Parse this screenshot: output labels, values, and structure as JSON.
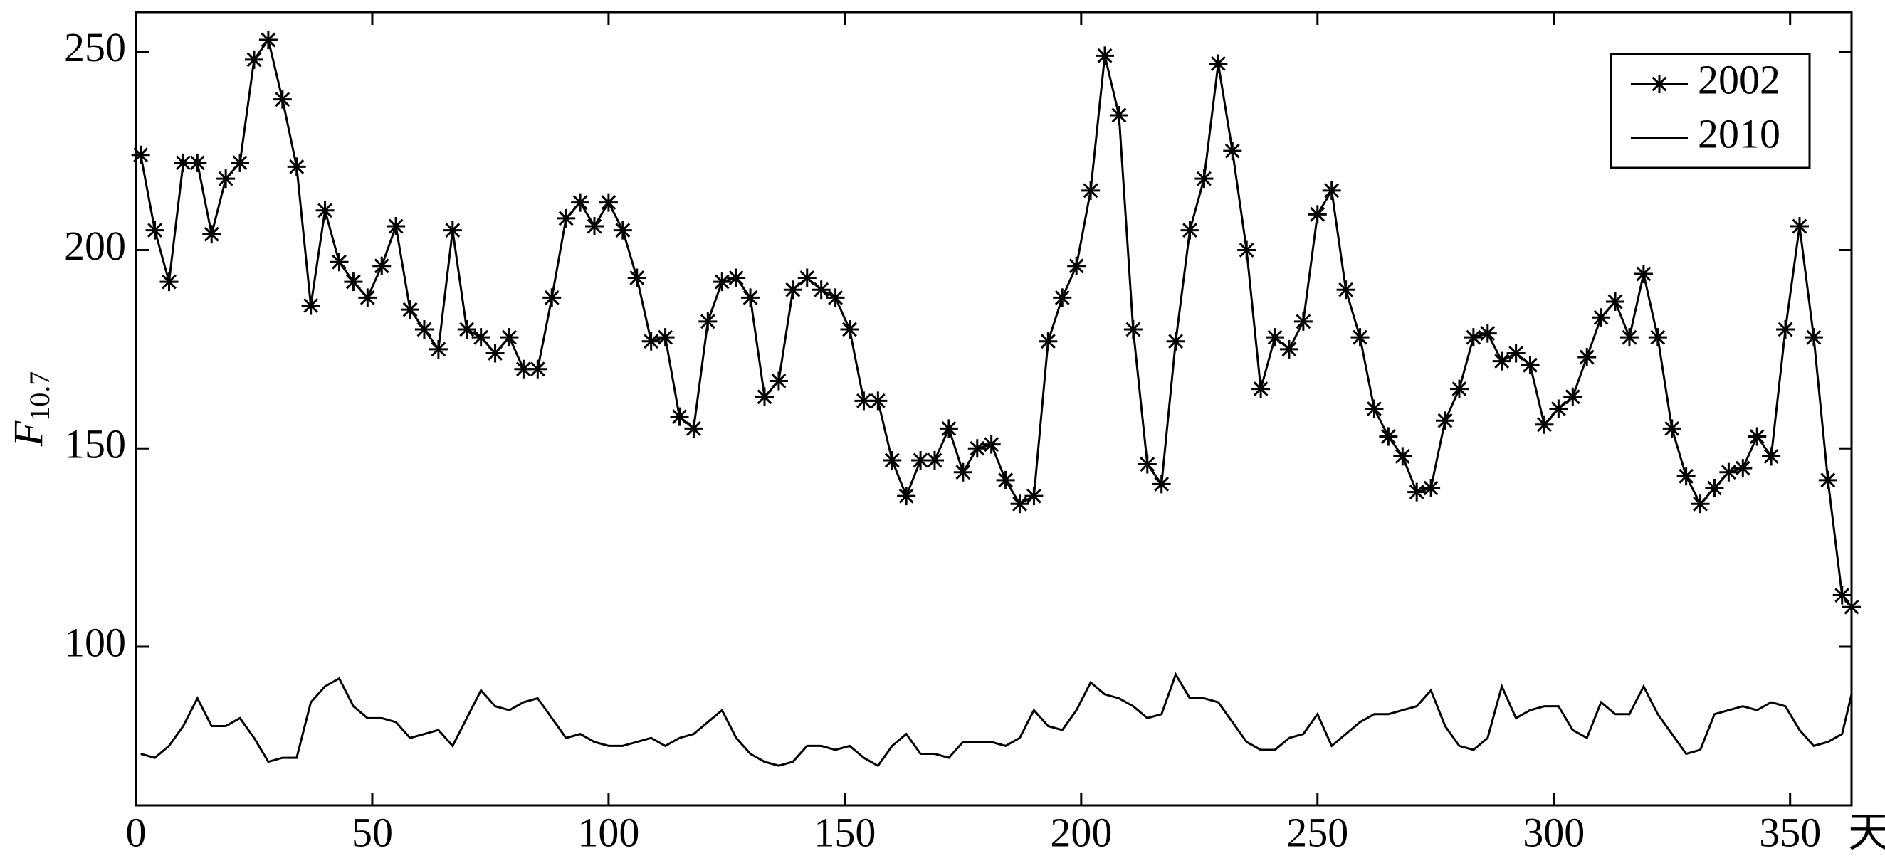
{
  "chart_data": {
    "type": "line",
    "ylabel": "F",
    "ylabel_subscript": "10.7",
    "xlabel": "天",
    "xlim": [
      0,
      363
    ],
    "ylim": [
      60,
      260
    ],
    "xticks": [
      0,
      50,
      100,
      150,
      200,
      250,
      300,
      350
    ],
    "yticks": [
      100,
      150,
      200,
      250
    ],
    "grid": false,
    "legend": "upper right",
    "x": [
      1,
      4,
      7,
      10,
      13,
      16,
      19,
      22,
      25,
      28,
      31,
      34,
      37,
      40,
      43,
      46,
      49,
      52,
      55,
      58,
      61,
      64,
      67,
      70,
      73,
      76,
      79,
      82,
      85,
      88,
      91,
      94,
      97,
      100,
      103,
      106,
      109,
      112,
      115,
      118,
      121,
      124,
      127,
      130,
      133,
      136,
      139,
      142,
      145,
      148,
      151,
      154,
      157,
      160,
      163,
      166,
      169,
      172,
      175,
      178,
      181,
      184,
      187,
      190,
      193,
      196,
      199,
      202,
      205,
      208,
      211,
      214,
      217,
      220,
      223,
      226,
      229,
      232,
      235,
      238,
      241,
      244,
      247,
      250,
      253,
      256,
      259,
      262,
      265,
      268,
      271,
      274,
      277,
      280,
      283,
      286,
      289,
      292,
      295,
      298,
      301,
      304,
      307,
      310,
      313,
      316,
      319,
      322,
      325,
      328,
      331,
      334,
      337,
      340,
      343,
      346,
      349,
      352,
      355,
      358,
      361,
      363
    ],
    "series": [
      {
        "name": "2002",
        "color": "#000000",
        "marker": "asterisk",
        "values": [
          224,
          205,
          192,
          222,
          222,
          204,
          218,
          222,
          248,
          253,
          238,
          221,
          186,
          210,
          197,
          192,
          188,
          196,
          206,
          185,
          180,
          175,
          205,
          180,
          178,
          174,
          178,
          170,
          170,
          188,
          208,
          212,
          206,
          212,
          205,
          193,
          177,
          178,
          158,
          155,
          182,
          192,
          193,
          188,
          163,
          167,
          190,
          193,
          190,
          188,
          180,
          162,
          162,
          147,
          138,
          147,
          147,
          155,
          144,
          150,
          151,
          142,
          136,
          138,
          177,
          188,
          196,
          215,
          249,
          234,
          180,
          146,
          141,
          177,
          205,
          218,
          247,
          225,
          200,
          165,
          178,
          175,
          182,
          209,
          215,
          190,
          178,
          160,
          153,
          148,
          139,
          140,
          157,
          165,
          178,
          179,
          172,
          174,
          171,
          156,
          160,
          163,
          173,
          183,
          187,
          178,
          194,
          178,
          155,
          143,
          136,
          140,
          144,
          145,
          153,
          148,
          180,
          206,
          178,
          142,
          113,
          110
        ]
      },
      {
        "name": "2010",
        "color": "#000000",
        "marker": "point",
        "values": [
          73,
          72,
          75,
          80,
          87,
          80,
          80,
          82,
          77,
          71,
          72,
          72,
          86,
          90,
          92,
          85,
          82,
          82,
          81,
          77,
          78,
          79,
          75,
          82,
          89,
          85,
          84,
          86,
          87,
          82,
          77,
          78,
          76,
          75,
          75,
          76,
          77,
          75,
          77,
          78,
          81,
          84,
          77,
          73,
          71,
          70,
          71,
          75,
          75,
          74,
          75,
          72,
          70,
          75,
          78,
          73,
          73,
          72,
          76,
          76,
          76,
          75,
          77,
          84,
          80,
          79,
          84,
          91,
          88,
          87,
          85,
          82,
          83,
          93,
          87,
          87,
          86,
          81,
          76,
          74,
          74,
          77,
          78,
          83,
          75,
          78,
          81,
          83,
          83,
          84,
          85,
          89,
          80,
          75,
          74,
          77,
          90,
          82,
          84,
          85,
          85,
          79,
          77,
          86,
          83,
          83,
          90,
          83,
          78,
          73,
          74,
          83,
          84,
          85,
          84,
          86,
          85,
          79,
          75,
          76,
          78,
          88
        ]
      }
    ]
  }
}
